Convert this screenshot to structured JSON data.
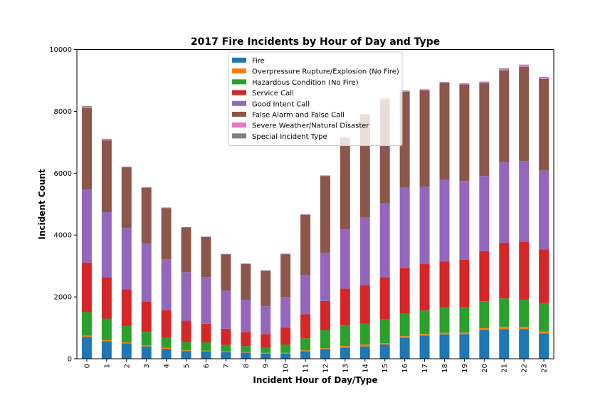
{
  "chart_data": {
    "type": "bar",
    "stacked": true,
    "title": "2017 Fire Incidents by Hour of Day and Type",
    "xlabel": "Incident Hour of Day/Type",
    "ylabel": "Incident Count",
    "ylim": [
      0,
      10000
    ],
    "yticks": [
      0,
      2000,
      4000,
      6000,
      8000,
      10000
    ],
    "legend_position": "top-center",
    "grid": false,
    "categories": [
      "0",
      "1",
      "2",
      "3",
      "4",
      "5",
      "6",
      "7",
      "8",
      "9",
      "10",
      "11",
      "12",
      "13",
      "14",
      "15",
      "16",
      "17",
      "18",
      "19",
      "20",
      "21",
      "22",
      "23"
    ],
    "series": [
      {
        "name": "Fire",
        "color": "#1f77b4",
        "values": [
          710,
          570,
          500,
          400,
          320,
          250,
          240,
          220,
          200,
          170,
          170,
          240,
          310,
          360,
          400,
          460,
          680,
          750,
          790,
          800,
          930,
          960,
          960,
          820
        ]
      },
      {
        "name": "Overpressure Rupture/Explosion (No Fire)",
        "color": "#ff7f0e",
        "values": [
          40,
          30,
          30,
          30,
          30,
          20,
          20,
          20,
          20,
          20,
          20,
          30,
          30,
          50,
          60,
          40,
          50,
          50,
          50,
          50,
          60,
          70,
          70,
          60
        ]
      },
      {
        "name": "Hazardous Condition (No Fire)",
        "color": "#2ca02c",
        "values": [
          760,
          700,
          540,
          440,
          340,
          270,
          270,
          210,
          190,
          180,
          270,
          390,
          580,
          670,
          680,
          770,
          730,
          760,
          830,
          830,
          870,
          920,
          880,
          920
        ]
      },
      {
        "name": "Service Call",
        "color": "#d62728",
        "values": [
          1600,
          1340,
          1180,
          980,
          880,
          690,
          600,
          520,
          460,
          430,
          550,
          780,
          950,
          1190,
          1240,
          1370,
          1480,
          1500,
          1480,
          1520,
          1620,
          1800,
          1880,
          1740
        ]
      },
      {
        "name": "Good Intent Call",
        "color": "#9467bd",
        "values": [
          2350,
          2100,
          1980,
          1880,
          1650,
          1570,
          1510,
          1230,
          1040,
          900,
          990,
          1260,
          1560,
          1910,
          2200,
          2390,
          2590,
          2510,
          2630,
          2550,
          2430,
          2600,
          2600,
          2540
        ]
      },
      {
        "name": "False Alarm and False Call",
        "color": "#8c564b",
        "values": [
          2650,
          2320,
          1960,
          1800,
          1650,
          1450,
          1300,
          1180,
          1160,
          1150,
          1380,
          1950,
          2480,
          2950,
          3300,
          3350,
          3100,
          3110,
          3140,
          3120,
          3000,
          2970,
          3050,
          2970
        ]
      },
      {
        "name": "Severe Weather/Natural Disaster",
        "color": "#e377c2",
        "values": [
          40,
          30,
          10,
          10,
          10,
          5,
          5,
          5,
          5,
          5,
          10,
          10,
          10,
          20,
          20,
          20,
          20,
          20,
          20,
          30,
          30,
          50,
          50,
          40
        ]
      },
      {
        "name": "Special Incident Type",
        "color": "#7f7f7f",
        "values": [
          20,
          20,
          10,
          10,
          10,
          5,
          5,
          5,
          5,
          5,
          10,
          10,
          10,
          20,
          20,
          20,
          20,
          10,
          10,
          10,
          20,
          20,
          20,
          20
        ]
      }
    ]
  }
}
